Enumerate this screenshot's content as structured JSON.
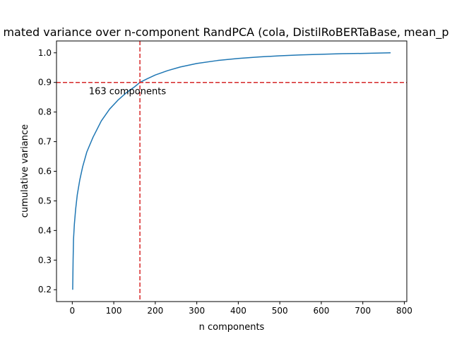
{
  "chart_data": {
    "type": "line",
    "title": "mated variance over n-component RandPCA (cola, DistilRoBERTaBase, mean_p",
    "xlabel": "n components",
    "ylabel": "cumulative variance",
    "xlim": [
      -38,
      806
    ],
    "ylim": [
      0.16,
      1.04
    ],
    "xticks": [
      0,
      100,
      200,
      300,
      400,
      500,
      600,
      700,
      800
    ],
    "yticks": [
      0.2,
      0.3,
      0.4,
      0.5,
      0.6,
      0.7,
      0.8,
      0.9,
      1.0
    ],
    "xtick_labels": [
      "0",
      "100",
      "200",
      "300",
      "400",
      "500",
      "600",
      "700",
      "800"
    ],
    "ytick_labels": [
      "0.2",
      "0.3",
      "0.4",
      "0.5",
      "0.6",
      "0.7",
      "0.8",
      "0.9",
      "1.0"
    ],
    "grid": false,
    "series": [
      {
        "color": "#1f77b4",
        "x": [
          1,
          2,
          3,
          5,
          8,
          12,
          18,
          25,
          35,
          50,
          70,
          90,
          110,
          130,
          150,
          163,
          180,
          200,
          230,
          260,
          300,
          350,
          400,
          450,
          500,
          550,
          600,
          650,
          700,
          767
        ],
        "y": [
          0.2,
          0.3,
          0.37,
          0.42,
          0.47,
          0.52,
          0.57,
          0.615,
          0.665,
          0.715,
          0.77,
          0.81,
          0.84,
          0.865,
          0.885,
          0.9,
          0.912,
          0.925,
          0.94,
          0.952,
          0.964,
          0.974,
          0.981,
          0.986,
          0.99,
          0.993,
          0.995,
          0.997,
          0.998,
          1.0
        ]
      }
    ],
    "reference_lines": {
      "color": "#d62728",
      "style": "dashed",
      "horizontal_y": 0.9,
      "vertical_x": 163
    },
    "annotation": {
      "text": "163 components",
      "x": 40,
      "y": 0.87
    }
  }
}
